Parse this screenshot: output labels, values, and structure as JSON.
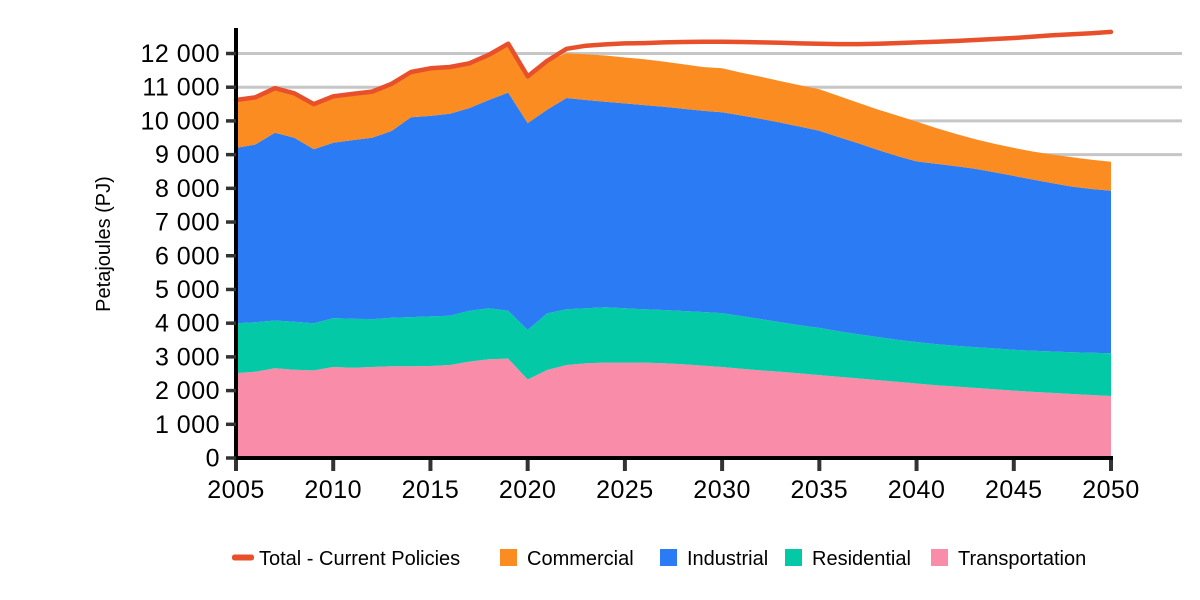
{
  "chart_data": {
    "type": "area",
    "title": "",
    "xlabel": "",
    "ylabel": "Petajoules (PJ)",
    "xlim": [
      2005,
      2050
    ],
    "ylim": [
      0,
      12000
    ],
    "grid": "horizontal-partial",
    "legend_position": "bottom",
    "visible_gridlines": [
      9000,
      10000,
      11000,
      12000
    ],
    "x": [
      2005,
      2006,
      2007,
      2008,
      2009,
      2010,
      2011,
      2012,
      2013,
      2014,
      2015,
      2016,
      2017,
      2018,
      2019,
      2020,
      2021,
      2022,
      2023,
      2024,
      2025,
      2026,
      2027,
      2028,
      2029,
      2030,
      2031,
      2032,
      2033,
      2034,
      2035,
      2036,
      2037,
      2038,
      2039,
      2040,
      2041,
      2042,
      2043,
      2044,
      2045,
      2046,
      2047,
      2048,
      2049,
      2050
    ],
    "x_ticks": [
      2005,
      2010,
      2015,
      2020,
      2025,
      2030,
      2035,
      2040,
      2045,
      2050
    ],
    "x_tick_labels": [
      "2005",
      "2010",
      "2015",
      "2020",
      "2025",
      "2030",
      "2035",
      "2040",
      "2045",
      "2050"
    ],
    "y_ticks": [
      0,
      1000,
      2000,
      3000,
      4000,
      5000,
      6000,
      7000,
      8000,
      9000,
      10000,
      11000,
      12000
    ],
    "y_tick_labels": [
      "0",
      "1 000",
      "2 000",
      "3 000",
      "4 000",
      "5 000",
      "6 000",
      "7 000",
      "8 000",
      "9 000",
      "10 000",
      "11 000",
      "12 000"
    ],
    "stack_order_bottom_to_top": [
      "Transportation",
      "Residential",
      "Industrial",
      "Commercial"
    ],
    "series": [
      {
        "name": "Transportation",
        "type": "area",
        "color": "#f98ca9",
        "values": [
          2520,
          2560,
          2660,
          2620,
          2600,
          2700,
          2680,
          2700,
          2720,
          2720,
          2730,
          2760,
          2860,
          2930,
          2950,
          2330,
          2610,
          2760,
          2810,
          2830,
          2830,
          2830,
          2810,
          2780,
          2740,
          2700,
          2650,
          2600,
          2560,
          2510,
          2460,
          2410,
          2360,
          2310,
          2260,
          2210,
          2160,
          2120,
          2080,
          2040,
          2000,
          1960,
          1930,
          1900,
          1870,
          1840
        ]
      },
      {
        "name": "Residential",
        "type": "area",
        "color": "#03c9a7",
        "values": [
          1480,
          1470,
          1420,
          1420,
          1400,
          1450,
          1450,
          1420,
          1440,
          1460,
          1470,
          1460,
          1510,
          1510,
          1420,
          1470,
          1680,
          1650,
          1630,
          1640,
          1610,
          1580,
          1580,
          1580,
          1590,
          1600,
          1560,
          1520,
          1470,
          1430,
          1400,
          1350,
          1310,
          1280,
          1250,
          1230,
          1220,
          1210,
          1210,
          1210,
          1210,
          1220,
          1230,
          1240,
          1250,
          1270
        ]
      },
      {
        "name": "Industrial",
        "type": "area",
        "color": "#2a7bf4",
        "values": [
          5200,
          5270,
          5570,
          5460,
          5160,
          5200,
          5300,
          5380,
          5540,
          5930,
          5950,
          5990,
          6010,
          6180,
          6470,
          6130,
          6040,
          6270,
          6180,
          6100,
          6080,
          6060,
          6030,
          6000,
          5970,
          5960,
          5950,
          5940,
          5920,
          5890,
          5850,
          5760,
          5670,
          5550,
          5450,
          5360,
          5350,
          5330,
          5290,
          5230,
          5160,
          5080,
          4990,
          4910,
          4860,
          4820
        ]
      },
      {
        "name": "Commercial",
        "type": "area",
        "color": "#fb8c22",
        "values": [
          1420,
          1400,
          1320,
          1320,
          1340,
          1380,
          1370,
          1370,
          1400,
          1340,
          1410,
          1390,
          1330,
          1340,
          1450,
          1390,
          1450,
          1330,
          1360,
          1370,
          1360,
          1360,
          1340,
          1320,
          1300,
          1300,
          1270,
          1250,
          1230,
          1230,
          1230,
          1220,
          1200,
          1200,
          1200,
          1180,
          1060,
          960,
          880,
          840,
          830,
          830,
          850,
          870,
          870,
          860
        ]
      },
      {
        "name": "Total - Current Policies",
        "type": "line",
        "color": "#e8502b",
        "values": [
          10620,
          10700,
          10970,
          10820,
          10500,
          10730,
          10800,
          10870,
          11100,
          11450,
          11560,
          11600,
          11710,
          11960,
          12290,
          11320,
          11780,
          12140,
          12230,
          12270,
          12300,
          12310,
          12330,
          12340,
          12350,
          12350,
          12340,
          12330,
          12320,
          12300,
          12290,
          12280,
          12280,
          12290,
          12310,
          12330,
          12350,
          12370,
          12400,
          12430,
          12460,
          12500,
          12540,
          12570,
          12600,
          12640
        ]
      }
    ]
  },
  "legend": {
    "items": [
      {
        "label": "Total - Current Policies",
        "swatch": "line",
        "color": "#e8502b"
      },
      {
        "label": "Commercial",
        "swatch": "square",
        "color": "#fb8c22"
      },
      {
        "label": "Industrial",
        "swatch": "square",
        "color": "#2a7bf4"
      },
      {
        "label": "Residential",
        "swatch": "square",
        "color": "#03c9a7"
      },
      {
        "label": "Transportation",
        "swatch": "square",
        "color": "#f98ca9"
      }
    ]
  },
  "colors": {
    "axis": "#000000",
    "tick": "#333333",
    "gridline": "#c6c6c6",
    "background": "#ffffff"
  }
}
